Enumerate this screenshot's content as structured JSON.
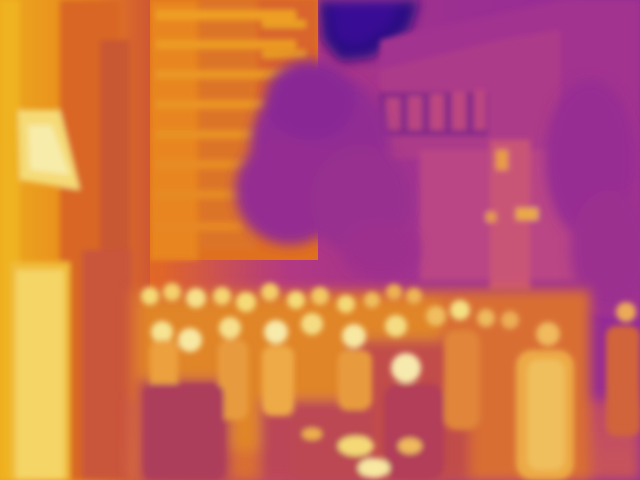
{
  "image": {
    "kind": "thermal-camera-frame",
    "palette": {
      "coldest": "#2a0a7a",
      "cold": "#7a1fa8",
      "cool": "#b03a9a",
      "warm": "#e0604a",
      "hot": "#f4a020",
      "hottest": "#fff1a8"
    }
  }
}
